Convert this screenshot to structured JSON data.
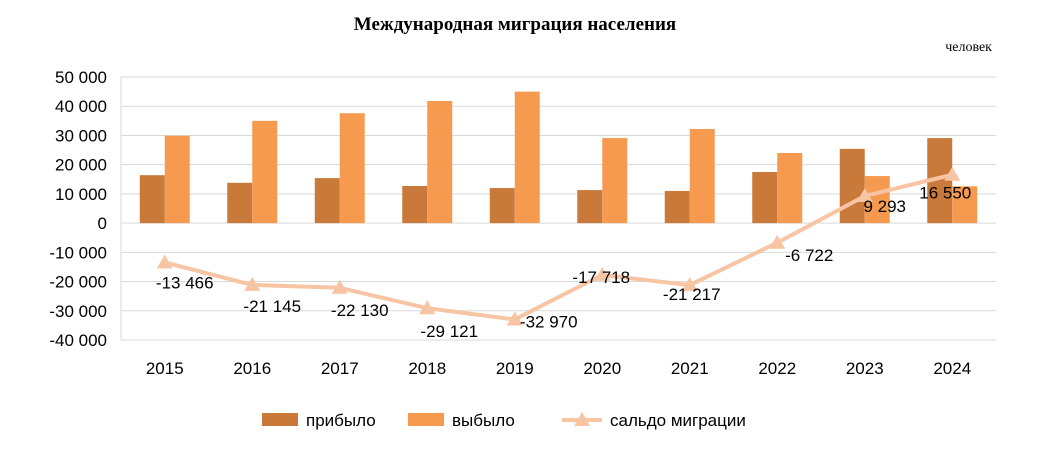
{
  "chart_data": {
    "type": "bar",
    "title": "Международная миграция населения",
    "units": "человек",
    "categories": [
      "2015",
      "2016",
      "2017",
      "2018",
      "2019",
      "2020",
      "2021",
      "2022",
      "2023",
      "2024"
    ],
    "ylim": [
      -40000,
      50000
    ],
    "yticks": [
      {
        "value": 50000,
        "label": "50 000"
      },
      {
        "value": 40000,
        "label": "40 000"
      },
      {
        "value": 30000,
        "label": "30 000"
      },
      {
        "value": 20000,
        "label": "20 000"
      },
      {
        "value": 10000,
        "label": "10 000"
      },
      {
        "value": 0,
        "label": "0"
      },
      {
        "value": -10000,
        "label": "-10 000"
      },
      {
        "value": -20000,
        "label": "-20 000"
      },
      {
        "value": -30000,
        "label": "-30 000"
      },
      {
        "value": -40000,
        "label": "-40 000"
      }
    ],
    "grid": true,
    "legend_position": "bottom",
    "series": [
      {
        "name": "прибыло",
        "type": "bar",
        "color": "#C97A3A",
        "values": [
          16400,
          13800,
          15400,
          12700,
          12000,
          11300,
          11000,
          17500,
          25400,
          29100
        ]
      },
      {
        "name": "выбыло",
        "type": "bar",
        "color": "#F59A4E",
        "values": [
          29900,
          35000,
          37600,
          41800,
          45000,
          29100,
          32200,
          24000,
          16100,
          12600
        ]
      },
      {
        "name": "сальдо миграции",
        "type": "line",
        "color": "#F7C4A4",
        "values": [
          -13466,
          -21145,
          -22130,
          -29121,
          -32970,
          -17718,
          -21217,
          -6722,
          9293,
          16550
        ],
        "labels": [
          "-13 466",
          "-21 145",
          "-22 130",
          "-29 121",
          "-32 970",
          "-17 718",
          "-21 217",
          "-6 722",
          "9 293",
          "16 550"
        ]
      }
    ]
  }
}
